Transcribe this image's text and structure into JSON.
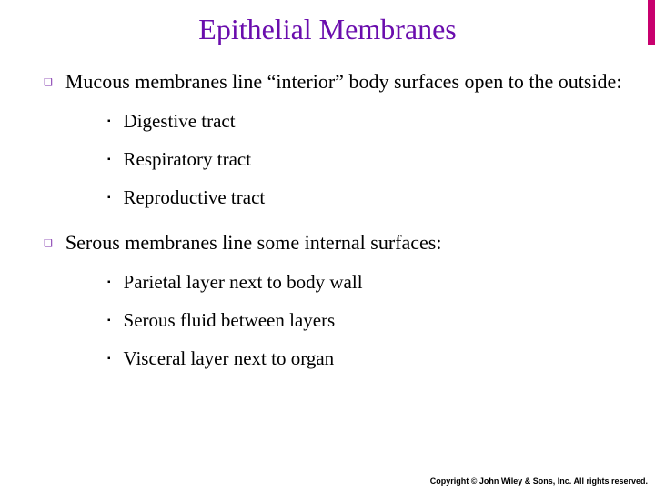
{
  "title": "Epithelial Membranes",
  "title_color": "#6a0dad",
  "accent_bar_color": "#c8006e",
  "bullet_l1_color": "#7a2aa8",
  "bullet_l1_glyph": "❑",
  "bullet_l2_glyph": "▪",
  "items": [
    {
      "text": "Mucous membranes line “interior” body surfaces open to the outside:",
      "sub": [
        "Digestive tract",
        "Respiratory tract",
        "Reproductive tract"
      ]
    },
    {
      "text": "Serous membranes line some internal surfaces:",
      "sub": [
        "Parietal layer next to body wall",
        "Serous fluid between layers",
        "Visceral layer next to organ"
      ]
    }
  ],
  "copyright": "Copyright © John Wiley & Sons, Inc. All rights reserved."
}
